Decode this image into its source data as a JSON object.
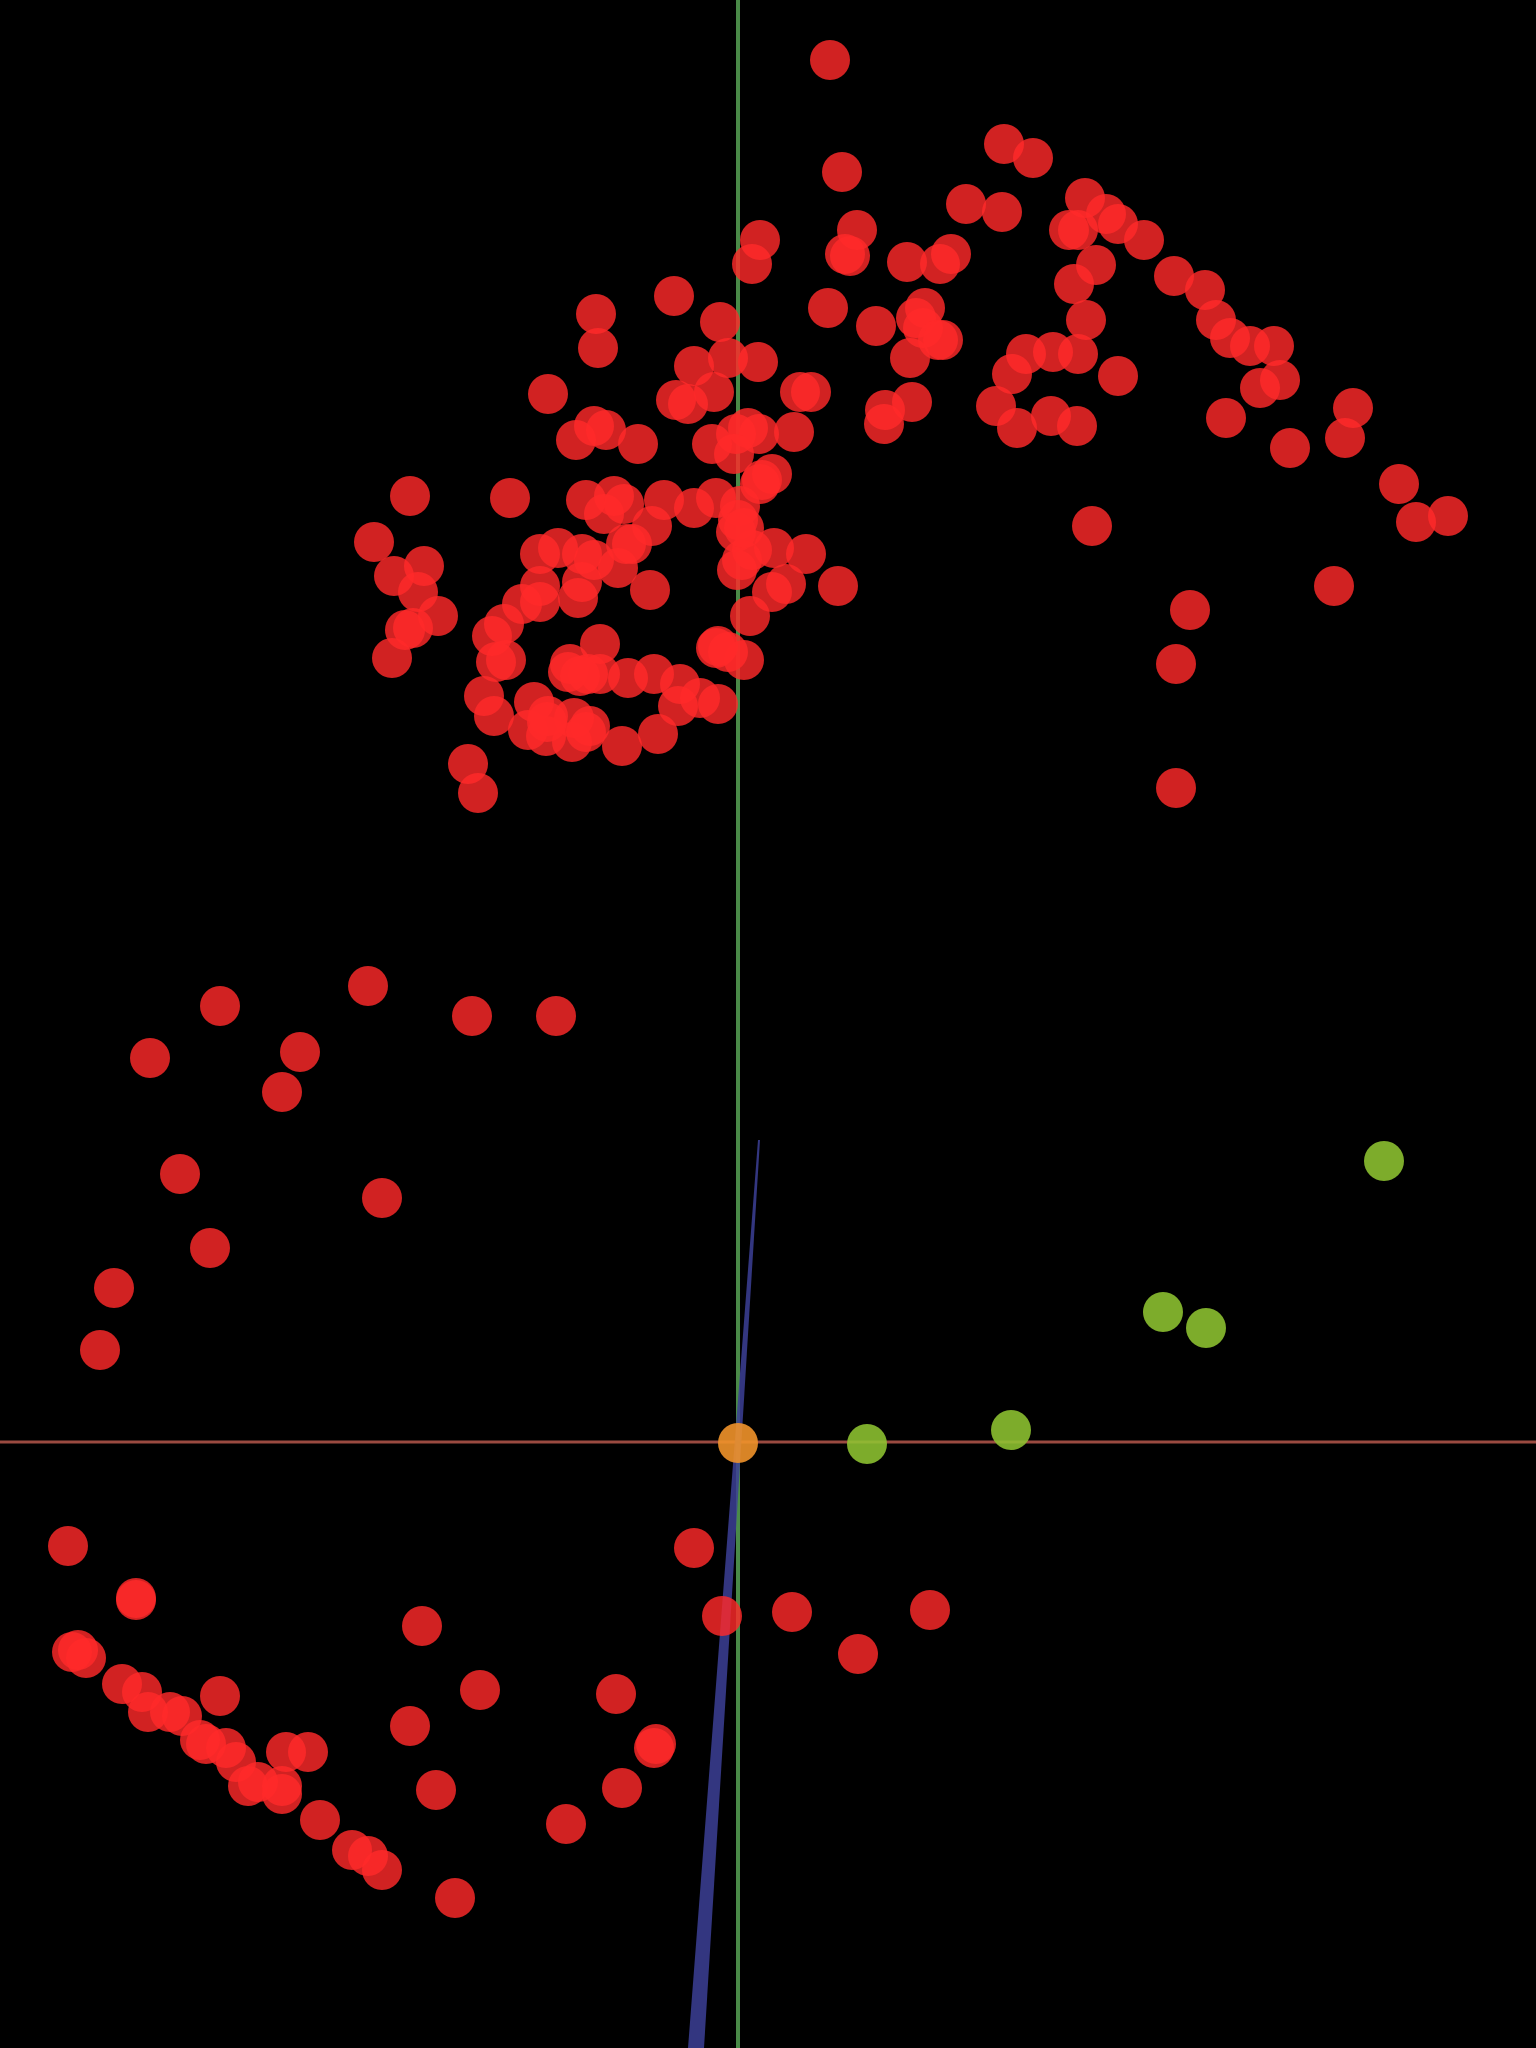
{
  "scene": {
    "background": "#000000",
    "axis_colors": {
      "x_axis": "#9a4a40",
      "y_axis": "#4a8a48",
      "z_axis": "#3c3f96"
    },
    "point_colors": {
      "red": "#ff2a2a",
      "green": "#8ec431",
      "orange": "#f0922a"
    }
  }
}
